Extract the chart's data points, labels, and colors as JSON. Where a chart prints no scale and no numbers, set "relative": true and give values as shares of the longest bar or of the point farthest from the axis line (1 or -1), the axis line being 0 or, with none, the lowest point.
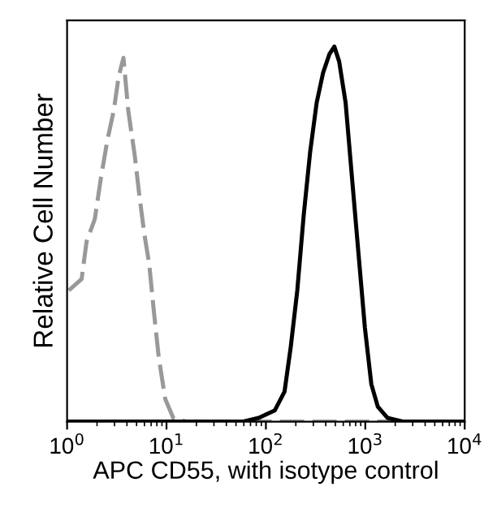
{
  "chart_data": {
    "type": "line",
    "relative": true,
    "xlabel": "APC CD55, with isotype control",
    "ylabel": "Relative Cell Number",
    "log": "x",
    "xlim": [
      1,
      10000
    ],
    "xticks": [
      {
        "value": 1,
        "label": "10$^{0}$"
      },
      {
        "value": 10,
        "label": "10$^{1}$"
      },
      {
        "value": 100,
        "label": "10$^{2}$"
      },
      {
        "value": 1000,
        "label": "10$^{3}$"
      },
      {
        "value": 10000,
        "label": "10$^{4}$"
      }
    ],
    "tick_labels": "x",
    "grid": false,
    "marker": "none",
    "series": [
      {
        "color": "#999999",
        "line_style": "dashed",
        "x": [
          1.04,
          1.4,
          1.57,
          1.9,
          2.19,
          2.54,
          2.95,
          3.3,
          3.69,
          4.12,
          4.79,
          5.35,
          5.99,
          6.7,
          7.49,
          8.37,
          9.72,
          11.7,
          15.8,
          10000
        ],
        "values": [
          0.35,
          0.38,
          0.48,
          0.54,
          0.65,
          0.75,
          0.83,
          0.92,
          0.97,
          0.83,
          0.71,
          0.6,
          0.5,
          0.42,
          0.29,
          0.17,
          0.06,
          0.01,
          0,
          0
        ]
      },
      {
        "color": "#000000",
        "line_style": "solid",
        "x": [
          1,
          58.2,
          84.6,
          123,
          154,
          178,
          207,
          240,
          279,
          324,
          376,
          436,
          488,
          546,
          634,
          735,
          853,
          991,
          1150,
          1336,
          1671,
          2426,
          10000
        ],
        "values": [
          0,
          0,
          0.01,
          0.03,
          0.08,
          0.2,
          0.35,
          0.55,
          0.72,
          0.85,
          0.93,
          0.98,
          1.0,
          0.96,
          0.85,
          0.65,
          0.45,
          0.25,
          0.1,
          0.04,
          0.01,
          0,
          0
        ]
      }
    ]
  }
}
